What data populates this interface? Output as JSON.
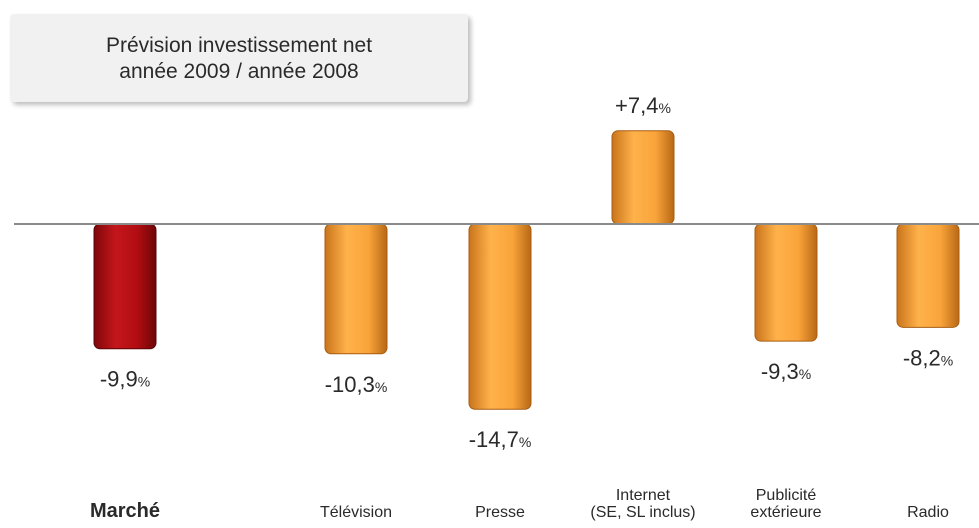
{
  "title_lines": [
    "Prévision investissement net",
    "année 2009 / année 2008"
  ],
  "colors": {
    "market": "#b10d12",
    "media": "#f7a23a",
    "baseline": "#8a8a8a"
  },
  "chart_data": {
    "type": "bar",
    "categories": [
      [
        "Marché"
      ],
      [
        "Télévision"
      ],
      [
        "Presse"
      ],
      [
        "Internet",
        "(SE, SL inclus)"
      ],
      [
        "Publicité",
        "extérieure"
      ],
      [
        "Radio"
      ]
    ],
    "values": [
      -9.9,
      -10.3,
      -14.7,
      7.4,
      -9.3,
      -8.2
    ],
    "value_labels": [
      "-9,9",
      "-10,3",
      "-14,7",
      "+7,4",
      "-9,3",
      "-8,2"
    ],
    "unit": "%",
    "highlight_index": 0,
    "grid": false,
    "legend": "none"
  }
}
